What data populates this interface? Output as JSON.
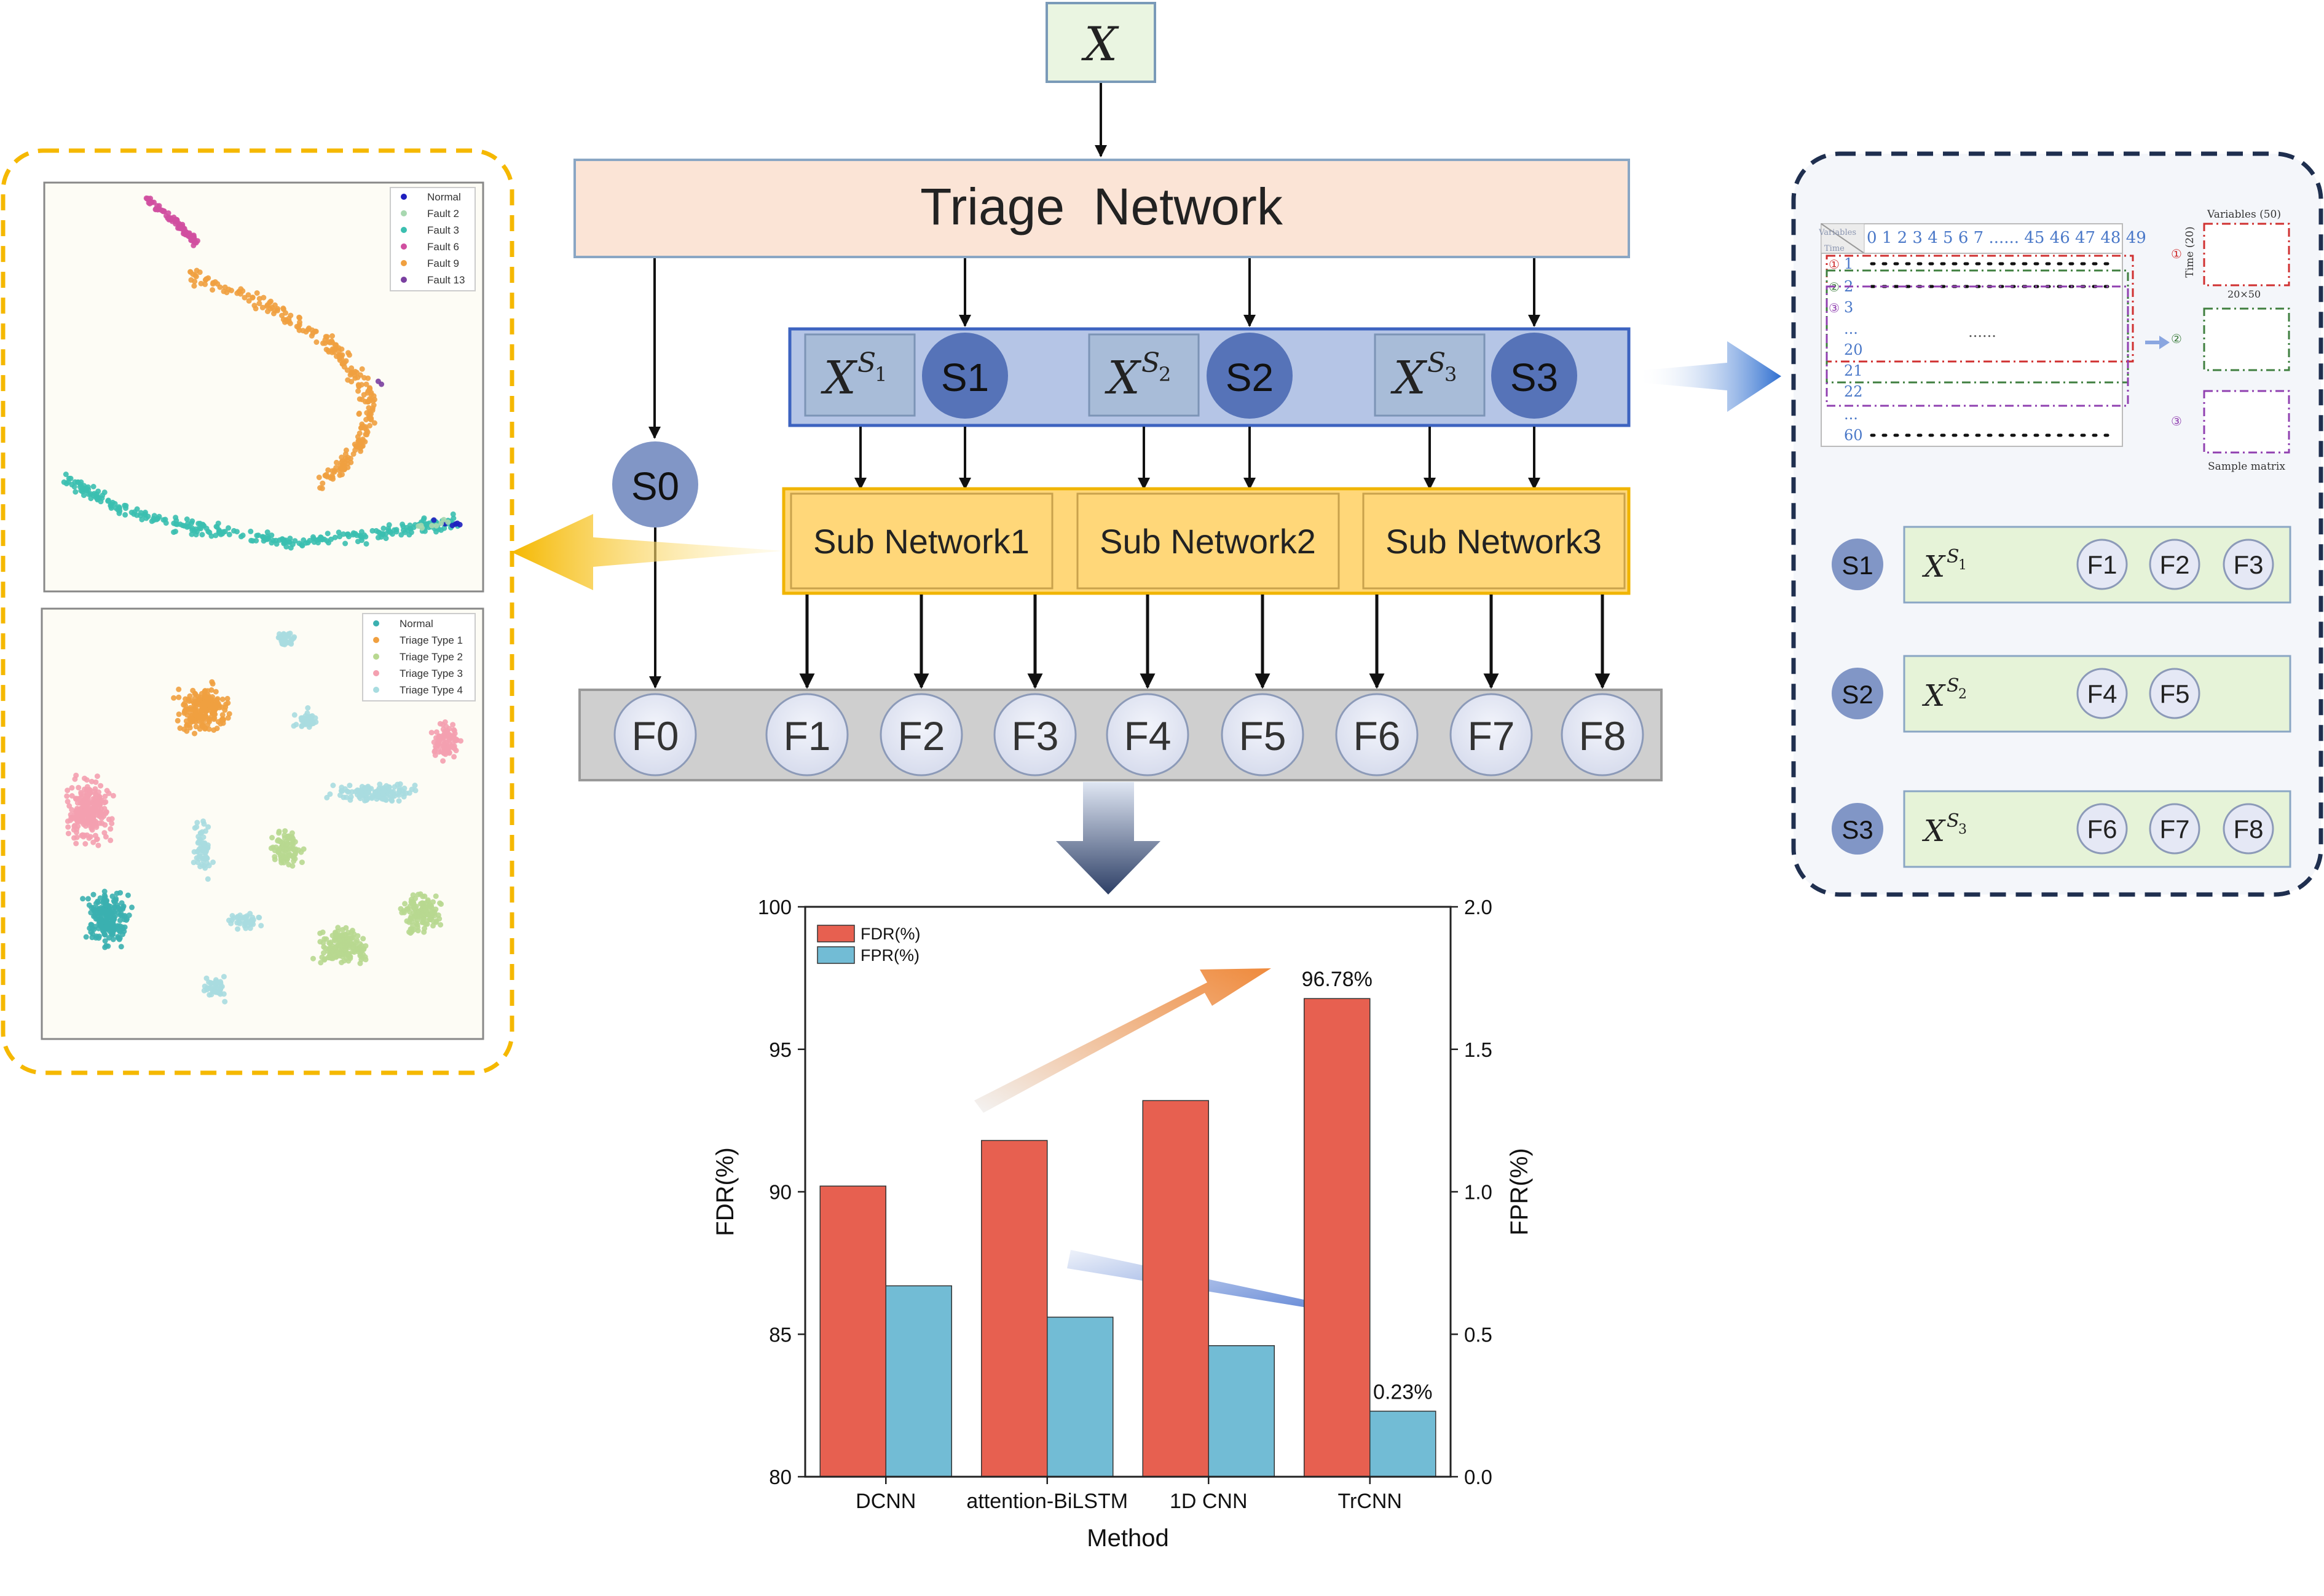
{
  "input": {
    "label": "X"
  },
  "triage": {
    "label": "Triage  Network"
  },
  "subsets": [
    {
      "xlabel": "X",
      "sup": "S",
      "sub": "1",
      "circle": "S1"
    },
    {
      "xlabel": "X",
      "sup": "S",
      "sub": "2",
      "circle": "S2"
    },
    {
      "xlabel": "X",
      "sup": "S",
      "sub": "3",
      "circle": "S3"
    }
  ],
  "s0": {
    "label": "S0"
  },
  "subnetworks": [
    "Sub Network1",
    "Sub Network2",
    "Sub Network3"
  ],
  "faults": [
    "F0",
    "F1",
    "F2",
    "F3",
    "F4",
    "F5",
    "F6",
    "F7",
    "F8"
  ],
  "tsne_top": {
    "legend": [
      "Normal",
      "Fault 2",
      "Fault 3",
      "Fault 6",
      "Fault 9",
      "Fault 13"
    ],
    "colors": [
      "#1f1fbf",
      "#a8d8b0",
      "#3bbfb0",
      "#d04fa0",
      "#f0a040",
      "#7a3fa0"
    ]
  },
  "tsne_bottom": {
    "legend": [
      "Normal",
      "Triage Type 1",
      "Triage Type 2",
      "Triage Type 3",
      "Triage Type 4"
    ],
    "colors": [
      "#3bb0b0",
      "#f0a040",
      "#b8d890",
      "#f4a0b0",
      "#a8dce0"
    ]
  },
  "sample_matrix": {
    "header_numbers": "0 1 2 3 4 5 6 7 ...... 45 46 47 48 49",
    "corner_top": "Variables",
    "corner_bottom": "Time",
    "rows": [
      "1",
      "2",
      "3",
      "...",
      "20",
      "21",
      "22",
      "...",
      "60"
    ],
    "row_marks": [
      "①",
      "②",
      "③"
    ],
    "middle_dots": "......",
    "variables_label": "Variables (50)",
    "time_label": "Time (20)",
    "size_label": "20×50",
    "matrix_label": "Sample matrix",
    "box_marks": [
      "①",
      "②",
      "③"
    ]
  },
  "mapping": [
    {
      "s": "S1",
      "x": "X",
      "sup": "S",
      "sub": "1",
      "f": [
        "F1",
        "F2",
        "F3"
      ]
    },
    {
      "s": "S2",
      "x": "X",
      "sup": "S",
      "sub": "2",
      "f": [
        "F4",
        "F5"
      ]
    },
    {
      "s": "S3",
      "x": "X",
      "sup": "S",
      "sub": "3",
      "f": [
        "F6",
        "F7",
        "F8"
      ]
    }
  ],
  "chart_data": {
    "type": "bar",
    "categories": [
      "DCNN",
      "attention-BiLSTM",
      "1D CNN",
      "TrCNN"
    ],
    "series": [
      {
        "name": "FDR(%)",
        "axis": "left",
        "color": "#e76050",
        "values": [
          90.2,
          91.8,
          93.2,
          96.78
        ]
      },
      {
        "name": "FPR(%)",
        "axis": "right",
        "color": "#72bcd5",
        "values": [
          0.67,
          0.56,
          0.46,
          0.23
        ]
      }
    ],
    "xlabel": "Method",
    "ylabel": "FDR(%)",
    "y2label": "FPR(%)",
    "ylim": [
      80,
      100
    ],
    "y2lim": [
      0.0,
      2.0
    ],
    "yticks": [
      "80",
      "85",
      "90",
      "95",
      "100"
    ],
    "y2ticks": [
      "0.0",
      "0.5",
      "1.0",
      "1.5",
      "2.0"
    ],
    "annotations": [
      "96.78%",
      "0.23%"
    ],
    "legend_position": "top-left",
    "grid": false
  }
}
